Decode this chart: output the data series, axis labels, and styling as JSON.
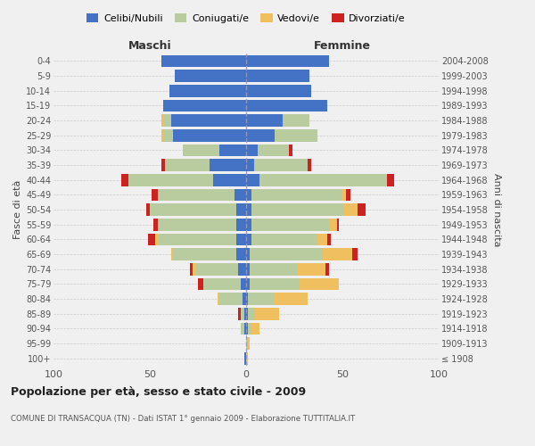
{
  "age_groups": [
    "100+",
    "95-99",
    "90-94",
    "85-89",
    "80-84",
    "75-79",
    "70-74",
    "65-69",
    "60-64",
    "55-59",
    "50-54",
    "45-49",
    "40-44",
    "35-39",
    "30-34",
    "25-29",
    "20-24",
    "15-19",
    "10-14",
    "5-9",
    "0-4"
  ],
  "birth_years": [
    "≤ 1908",
    "1909-1913",
    "1914-1918",
    "1919-1923",
    "1924-1928",
    "1929-1933",
    "1934-1938",
    "1939-1943",
    "1944-1948",
    "1949-1953",
    "1954-1958",
    "1959-1963",
    "1964-1968",
    "1969-1973",
    "1974-1978",
    "1979-1983",
    "1984-1988",
    "1989-1993",
    "1994-1998",
    "1999-2003",
    "2004-2008"
  ],
  "maschi": {
    "celibi": [
      1,
      0,
      1,
      1,
      2,
      3,
      4,
      5,
      5,
      5,
      5,
      6,
      17,
      19,
      14,
      38,
      39,
      43,
      40,
      37,
      44
    ],
    "coniugati": [
      0,
      0,
      2,
      2,
      12,
      19,
      22,
      33,
      41,
      41,
      45,
      40,
      44,
      23,
      19,
      5,
      4,
      0,
      0,
      0,
      0
    ],
    "vedovi": [
      0,
      0,
      0,
      0,
      1,
      0,
      2,
      1,
      1,
      0,
      0,
      0,
      0,
      0,
      0,
      1,
      1,
      0,
      0,
      0,
      0
    ],
    "divorziati": [
      0,
      0,
      0,
      1,
      0,
      3,
      1,
      0,
      4,
      2,
      2,
      3,
      4,
      2,
      0,
      0,
      0,
      0,
      0,
      0,
      0
    ]
  },
  "femmine": {
    "nubili": [
      0,
      0,
      1,
      1,
      1,
      2,
      2,
      2,
      3,
      3,
      3,
      3,
      7,
      4,
      6,
      15,
      19,
      42,
      34,
      33,
      43
    ],
    "coniugate": [
      0,
      1,
      2,
      3,
      14,
      26,
      25,
      38,
      34,
      40,
      48,
      47,
      66,
      28,
      16,
      22,
      14,
      0,
      0,
      0,
      0
    ],
    "vedove": [
      1,
      1,
      4,
      13,
      17,
      20,
      14,
      15,
      5,
      4,
      7,
      2,
      0,
      0,
      0,
      0,
      0,
      0,
      0,
      0,
      0
    ],
    "divorziate": [
      0,
      0,
      0,
      0,
      0,
      0,
      2,
      3,
      2,
      1,
      4,
      2,
      4,
      2,
      2,
      0,
      0,
      0,
      0,
      0,
      0
    ]
  },
  "colors": {
    "celibi": "#4472c4",
    "coniugati": "#b8cca0",
    "vedovi": "#f0c060",
    "divorziati": "#cc2222"
  },
  "title": "Popolazione per età, sesso e stato civile - 2009",
  "subtitle": "COMUNE DI TRANSACQUA (TN) - Dati ISTAT 1° gennaio 2009 - Elaborazione TUTTITALIA.IT",
  "xlabel_left": "Maschi",
  "xlabel_right": "Femmine",
  "ylabel_left": "Fasce di età",
  "ylabel_right": "Anni di nascita",
  "xlim": 100,
  "legend_labels": [
    "Celibi/Nubili",
    "Coniugati/e",
    "Vedovi/e",
    "Divorziati/e"
  ],
  "background_color": "#f0f0f0"
}
